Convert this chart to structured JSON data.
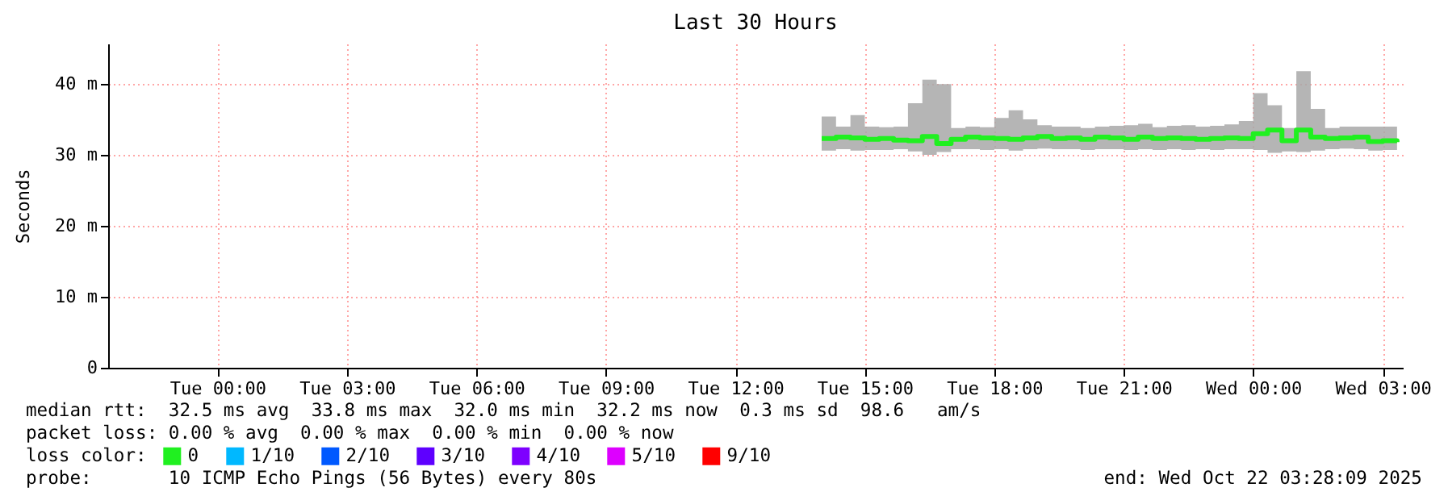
{
  "chart_data": {
    "type": "step",
    "title": "Last 30 Hours",
    "ylabel": "Seconds",
    "legend_title": "loss color:",
    "legend": "bottom left",
    "grid": true,
    "xlim": [
      "2025-10-20T21:28",
      "2025-10-22T03:28"
    ],
    "xticks": [
      {
        "value": "2025-10-21T00:00",
        "label": "Tue 00:00"
      },
      {
        "value": "2025-10-21T03:00",
        "label": "Tue 03:00"
      },
      {
        "value": "2025-10-21T06:00",
        "label": "Tue 06:00"
      },
      {
        "value": "2025-10-21T09:00",
        "label": "Tue 09:00"
      },
      {
        "value": "2025-10-21T12:00",
        "label": "Tue 12:00"
      },
      {
        "value": "2025-10-21T15:00",
        "label": "Tue 15:00"
      },
      {
        "value": "2025-10-21T18:00",
        "label": "Tue 18:00"
      },
      {
        "value": "2025-10-21T21:00",
        "label": "Tue 21:00"
      },
      {
        "value": "2025-10-22T00:00",
        "label": "Wed 00:00"
      },
      {
        "value": "2025-10-22T03:00",
        "label": "Wed 03:00"
      }
    ],
    "ylim": [
      0,
      45.7
    ],
    "yticks": [
      0,
      {
        "value": 10,
        "label": "10 m"
      },
      {
        "value": 20,
        "label": "20 m"
      },
      {
        "value": 30,
        "label": "30 m"
      },
      {
        "value": 40,
        "label": "40 m"
      }
    ],
    "x": [
      "2025-10-21T14:00",
      "2025-10-21T14:20",
      "2025-10-21T14:40",
      "2025-10-21T15:00",
      "2025-10-21T15:20",
      "2025-10-21T15:40",
      "2025-10-21T16:00",
      "2025-10-21T16:20",
      "2025-10-21T16:40",
      "2025-10-21T17:00",
      "2025-10-21T17:20",
      "2025-10-21T17:40",
      "2025-10-21T18:00",
      "2025-10-21T18:20",
      "2025-10-21T18:40",
      "2025-10-21T19:00",
      "2025-10-21T19:20",
      "2025-10-21T19:40",
      "2025-10-21T20:00",
      "2025-10-21T20:20",
      "2025-10-21T20:40",
      "2025-10-21T21:00",
      "2025-10-21T21:20",
      "2025-10-21T21:40",
      "2025-10-21T22:00",
      "2025-10-21T22:20",
      "2025-10-21T22:40",
      "2025-10-21T23:00",
      "2025-10-21T23:20",
      "2025-10-21T23:40",
      "2025-10-22T00:00",
      "2025-10-22T00:20",
      "2025-10-22T00:40",
      "2025-10-22T01:00",
      "2025-10-22T01:20",
      "2025-10-22T01:40",
      "2025-10-22T02:00",
      "2025-10-22T02:20",
      "2025-10-22T02:40",
      "2025-10-22T03:00",
      "2025-10-22T03:20"
    ],
    "series": [
      {
        "name": "0",
        "color": "#20f020",
        "values": [
          32.3,
          32.5,
          32.4,
          32.2,
          32.3,
          32.1,
          32.0,
          32.6,
          31.6,
          32.2,
          32.5,
          32.4,
          32.3,
          32.2,
          32.4,
          32.6,
          32.3,
          32.4,
          32.2,
          32.5,
          32.4,
          32.2,
          32.5,
          32.3,
          32.4,
          32.3,
          32.2,
          32.3,
          32.4,
          32.3,
          33.0,
          33.5,
          32.0,
          33.5,
          32.5,
          32.3,
          32.4,
          32.5,
          31.9,
          32.0,
          31.8
        ],
        "upper": [
          35.4,
          34.0,
          35.6,
          34.0,
          33.9,
          34.0,
          37.3,
          40.6,
          40.0,
          33.8,
          34.0,
          33.9,
          35.2,
          36.3,
          35.0,
          34.2,
          34.0,
          34.0,
          33.8,
          34.0,
          34.1,
          34.2,
          34.4,
          33.9,
          34.1,
          34.2,
          34.0,
          34.1,
          34.3,
          34.8,
          38.7,
          37.0,
          33.8,
          41.8,
          36.5,
          33.8,
          34.0,
          34.0,
          34.0,
          34.0,
          33.9
        ],
        "lower": [
          30.6,
          30.8,
          30.6,
          30.7,
          30.7,
          30.8,
          30.5,
          30.0,
          30.4,
          30.8,
          30.8,
          30.7,
          30.8,
          30.6,
          30.8,
          30.9,
          30.8,
          30.8,
          30.7,
          30.8,
          30.8,
          30.7,
          30.8,
          30.7,
          30.8,
          30.7,
          30.8,
          30.7,
          30.8,
          30.8,
          30.7,
          30.3,
          30.5,
          30.4,
          30.6,
          30.8,
          30.9,
          30.8,
          30.6,
          30.7,
          30.8
        ]
      },
      {
        "name": "1/10",
        "color": "#00b8ff",
        "values": [
          null,
          null,
          null,
          null,
          null,
          null,
          null,
          null,
          null,
          null,
          null,
          null,
          null,
          null,
          null,
          null,
          null,
          null,
          null,
          null,
          null,
          null,
          null,
          null,
          null,
          null,
          null,
          null,
          null,
          null,
          null,
          null,
          null,
          null,
          null,
          null,
          null,
          null,
          null,
          null,
          null
        ]
      },
      {
        "name": "2/10",
        "color": "#0059ff",
        "values": [
          null,
          null,
          null,
          null,
          null,
          null,
          null,
          null,
          null,
          null,
          null,
          null,
          null,
          null,
          null,
          null,
          null,
          null,
          null,
          null,
          null,
          null,
          null,
          null,
          null,
          null,
          null,
          null,
          null,
          null,
          null,
          null,
          null,
          null,
          null,
          null,
          null,
          null,
          null,
          null,
          null
        ]
      },
      {
        "name": "3/10",
        "color": "#5e00ff",
        "values": [
          null,
          null,
          null,
          null,
          null,
          null,
          null,
          null,
          null,
          null,
          null,
          null,
          null,
          null,
          null,
          null,
          null,
          null,
          null,
          null,
          null,
          null,
          null,
          null,
          null,
          null,
          null,
          null,
          null,
          null,
          null,
          null,
          null,
          null,
          null,
          null,
          null,
          null,
          null,
          null,
          null
        ]
      },
      {
        "name": "4/10",
        "color": "#7e00ff",
        "values": [
          null,
          null,
          null,
          null,
          null,
          null,
          null,
          null,
          null,
          null,
          null,
          null,
          null,
          null,
          null,
          null,
          null,
          null,
          null,
          null,
          null,
          null,
          null,
          null,
          null,
          null,
          null,
          null,
          null,
          null,
          null,
          null,
          null,
          null,
          null,
          null,
          null,
          null,
          null,
          null,
          null
        ]
      },
      {
        "name": "5/10",
        "color": "#dd00ff",
        "values": [
          null,
          null,
          null,
          null,
          null,
          null,
          null,
          null,
          null,
          null,
          null,
          null,
          null,
          null,
          null,
          null,
          null,
          null,
          null,
          null,
          null,
          null,
          null,
          null,
          null,
          null,
          null,
          null,
          null,
          null,
          null,
          null,
          null,
          null,
          null,
          null,
          null,
          null,
          null,
          null,
          null
        ]
      },
      {
        "name": "9/10",
        "color": "#ff0000",
        "values": [
          null,
          null,
          null,
          null,
          null,
          null,
          null,
          null,
          null,
          null,
          null,
          null,
          null,
          null,
          null,
          null,
          null,
          null,
          null,
          null,
          null,
          null,
          null,
          null,
          null,
          null,
          null,
          null,
          null,
          null,
          null,
          null,
          null,
          null,
          null,
          null,
          null,
          null,
          null,
          null,
          null
        ]
      }
    ],
    "annotations": [
      "median rtt:  32.5 ms avg  33.8 ms max  32.0 ms min  32.2 ms now  0.3 ms sd  98.6   am/s",
      "packet loss: 0.00 % avg  0.00 % max  0.00 % min  0.00 % now",
      "probe:       10 ICMP Echo Pings (56 Bytes) every 80s",
      "end: Wed Oct 22 03:28:09 2025"
    ]
  }
}
